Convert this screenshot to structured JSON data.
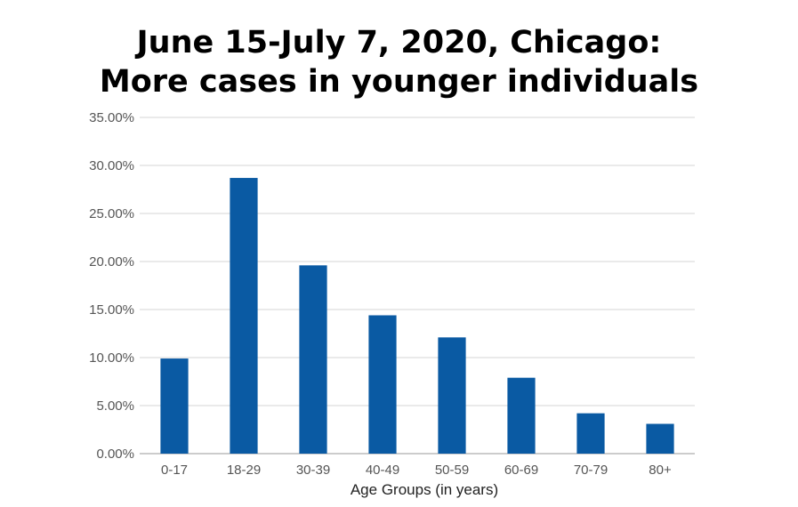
{
  "chart_data": {
    "type": "bar",
    "title_lines": [
      "June 15-July 7, 2020, Chicago:",
      "More cases in younger individuals"
    ],
    "xlabel": "Age Groups (in years)",
    "ylabel": "",
    "categories": [
      "0-17",
      "18-29",
      "30-39",
      "40-49",
      "50-59",
      "60-69",
      "70-79",
      "80+"
    ],
    "values": [
      9.9,
      28.7,
      19.6,
      14.4,
      12.1,
      7.9,
      4.2,
      3.1
    ],
    "ylim": [
      0,
      35
    ],
    "yticks": [
      "0.00%",
      "5.00%",
      "10.00%",
      "15.00%",
      "20.00%",
      "25.00%",
      "30.00%",
      "35.00%"
    ],
    "bar_color": "#0a5aa3",
    "grid": true,
    "legend": "none"
  }
}
